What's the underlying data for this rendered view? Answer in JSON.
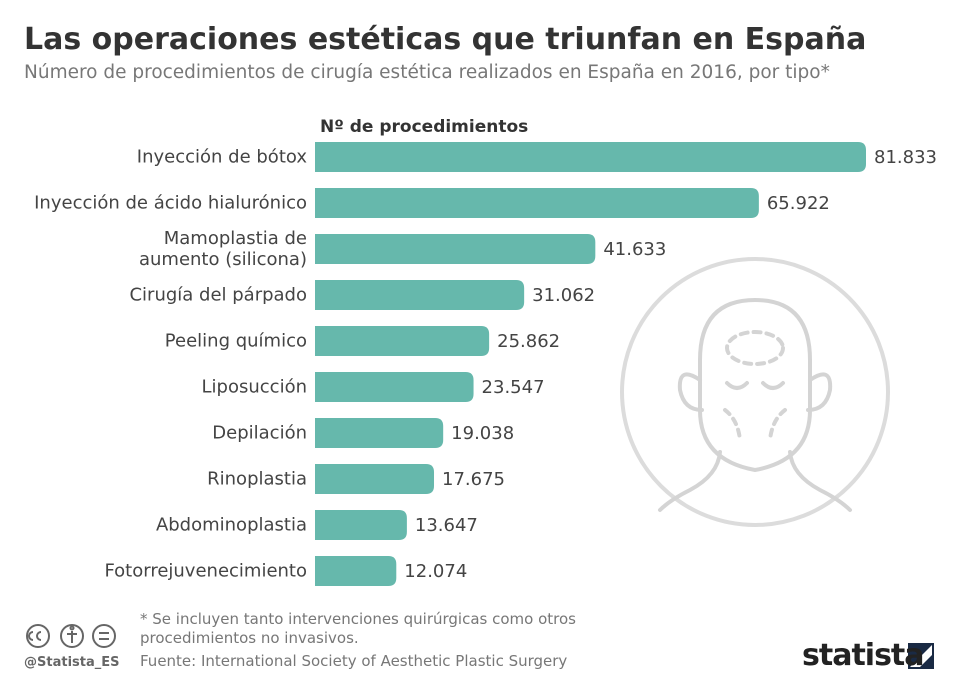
{
  "title": "Las operaciones estéticas que triunfan en España",
  "subtitle": "Número de procedimientos de cirugía estética realizados en España en 2016, por tipo*",
  "chart_data": {
    "type": "bar",
    "orientation": "horizontal",
    "axis_label": "Nº de procedimientos",
    "color": "#66b8ac",
    "categories": [
      "Inyección de bótox",
      "Inyección de ácido hialurónico",
      "Mamoplastia de\naumento (silicona)",
      "Cirugía del párpado",
      "Peeling químico",
      "Liposucción",
      "Depilación",
      "Rinoplastia",
      "Abdominoplastia",
      "Fotorrejuvenecimiento"
    ],
    "values": [
      81833,
      65922,
      41633,
      31062,
      25862,
      23547,
      19038,
      17675,
      13647,
      12074
    ],
    "value_labels": [
      "81.833",
      "65.922",
      "41.633",
      "31.062",
      "25.862",
      "23.547",
      "19.038",
      "17.675",
      "13.647",
      "12.074"
    ]
  },
  "footnote": "* Se incluyen tanto intervenciones quirúrgicas como otros\n   procedimientos no invasivos.",
  "source": "Fuente: International Society of Aesthetic Plastic Surgery",
  "handle": "@Statista_ES",
  "logo": "statista"
}
